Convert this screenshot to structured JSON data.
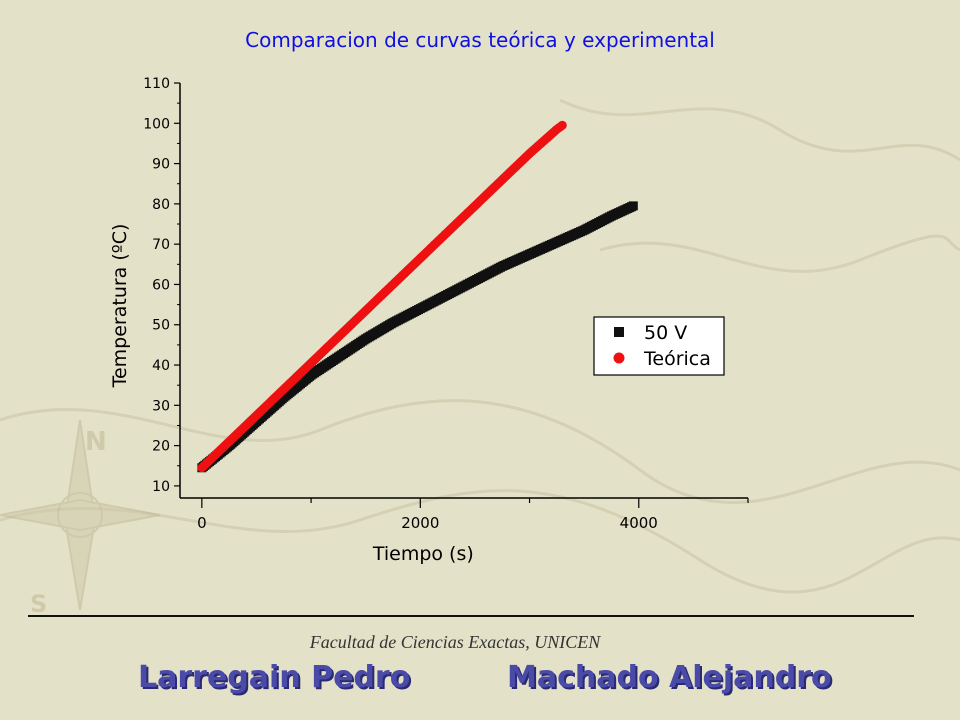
{
  "slide": {
    "title": "Comparacion de curvas teórica y experimental",
    "institution": "Facultad de Ciencias Exactas, UNICEN",
    "authors": [
      "Larregain Pedro",
      "Machado Alejandro"
    ]
  },
  "colors": {
    "background": "#e4e1c9",
    "title": "#1010e0",
    "author": "#4a4aa8",
    "experimental": "#111111",
    "theoretical": "#ee1111"
  },
  "chart_data": {
    "type": "scatter",
    "title": "",
    "xlabel": "Tiempo (s)",
    "ylabel": "Temperatura (ºC)",
    "xlim": [
      -200,
      5000
    ],
    "ylim": [
      7,
      110
    ],
    "xticks": [
      0,
      2000,
      4000
    ],
    "xtick_labels": [
      "0",
      "2000",
      "4000"
    ],
    "yticks": [
      10,
      20,
      30,
      40,
      50,
      60,
      70,
      80,
      90,
      100,
      110
    ],
    "ytick_labels": [
      "10",
      "20",
      "30",
      "40",
      "50",
      "60",
      "70",
      "80",
      "90",
      "100",
      "110"
    ],
    "grid": false,
    "legend_position": "center-right",
    "series": [
      {
        "name": "50 V",
        "marker": "square",
        "color": "#111111",
        "x": [
          0,
          250,
          500,
          750,
          1000,
          1250,
          1500,
          1750,
          2000,
          2250,
          2500,
          2750,
          3000,
          3250,
          3500,
          3750,
          3950
        ],
        "y": [
          14.5,
          20,
          26,
          32,
          37.5,
          42,
          46.5,
          50.5,
          54,
          57.5,
          61,
          64.5,
          67.5,
          70.5,
          73.5,
          77,
          79.5
        ]
      },
      {
        "name": "Teórica",
        "marker": "circle",
        "color": "#ee1111",
        "x": [
          0,
          250,
          500,
          750,
          1000,
          1250,
          1500,
          1750,
          2000,
          2250,
          2500,
          2750,
          3000,
          3250,
          3300
        ],
        "y": [
          14.5,
          21,
          27.5,
          34,
          40.5,
          47,
          53.5,
          60,
          66.5,
          73,
          79.5,
          86,
          92.5,
          98.5,
          99.5
        ]
      }
    ]
  }
}
